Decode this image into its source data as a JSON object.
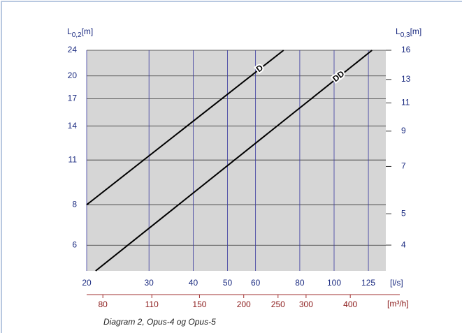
{
  "chart_data": {
    "type": "line",
    "caption": "Diagram 2, Opus-4 og Opus-5",
    "y_label": {
      "main": "L",
      "sub": "0,2",
      "unit": "[m]"
    },
    "y2_label": {
      "main": "L",
      "sub": "0,3",
      "unit": "[m]"
    },
    "x_label": "[l/s]",
    "x2_label": "[m³/h]",
    "log_x": true,
    "log_y": true,
    "grid": true,
    "xlim": [
      20,
      140
    ],
    "xticks": [
      20,
      30,
      40,
      50,
      60,
      80,
      100,
      125
    ],
    "x2lim": [
      72,
      504
    ],
    "x2ticks": [
      80,
      110,
      150,
      200,
      250,
      300,
      400
    ],
    "ylim": [
      5,
      24
    ],
    "yticks": [
      6,
      8,
      11,
      14,
      17,
      20,
      24
    ],
    "y2lim": [
      3.33,
      16
    ],
    "y2ticks": [
      4,
      5,
      7,
      9,
      11,
      13,
      16
    ],
    "series": [
      {
        "name": "D",
        "color": "#000000",
        "x": [
          20,
          72
        ],
        "values": [
          8,
          24
        ]
      },
      {
        "name": "DD",
        "color": "#000000",
        "x": [
          21.2,
          128
        ],
        "values": [
          5,
          24
        ]
      }
    ]
  }
}
